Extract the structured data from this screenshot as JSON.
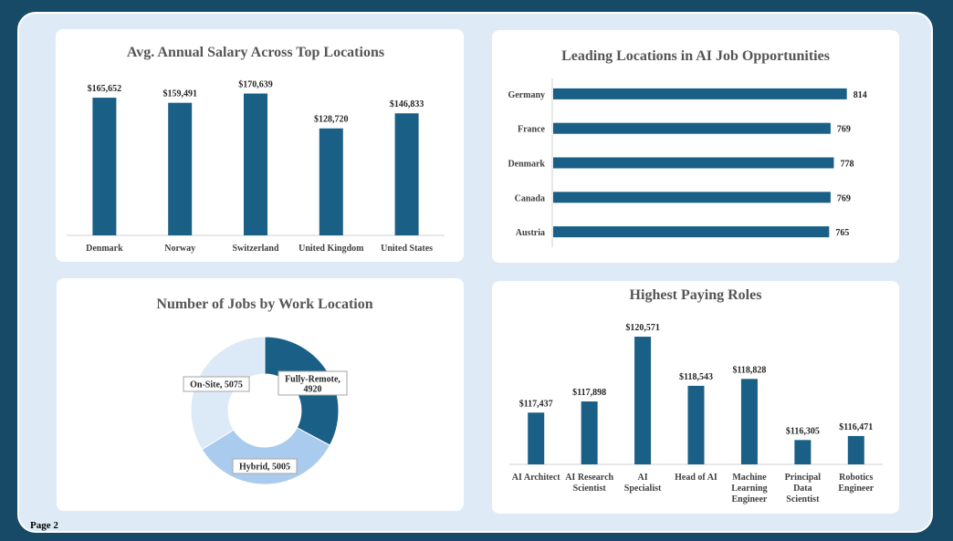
{
  "page_label": "Page 2",
  "colors": {
    "bar": "#1a5f86",
    "donut": [
      "#1a5f86",
      "#a9cbee",
      "#dce9f6"
    ]
  },
  "chart_data": [
    {
      "type": "bar",
      "title": "Avg. Annual Salary Across Top Locations",
      "categories": [
        "Denmark",
        "Norway",
        "Switzerland",
        "United Kingdom",
        "United States"
      ],
      "values": [
        165652,
        159491,
        170639,
        128720,
        146833
      ],
      "data_labels": [
        "$165,652",
        "$159,491",
        "$170,639",
        "$128,720",
        "$146,833"
      ],
      "ylim": [
        0,
        180000
      ],
      "grid": false
    },
    {
      "type": "bar",
      "orientation": "horizontal",
      "title": "Leading Locations in AI Job Opportunities",
      "categories": [
        "Germany",
        "France",
        "Denmark",
        "Canada",
        "Austria"
      ],
      "values": [
        814,
        769,
        778,
        769,
        765
      ],
      "data_labels": [
        "814",
        "769",
        "778",
        "769",
        "765"
      ],
      "xlim": [
        0,
        835
      ],
      "grid": false
    },
    {
      "type": "pie",
      "style": "donut",
      "title": "Number of Jobs by Work Location",
      "categories": [
        "Fully-Remote",
        "Hybrid",
        "On-Site"
      ],
      "values": [
        4920,
        5005,
        5075
      ],
      "data_labels": [
        "Fully-Remote, 4920",
        "Hybrid, 5005",
        "On-Site, 5075"
      ]
    },
    {
      "type": "bar",
      "title": "Highest Paying Roles",
      "categories": [
        "AI Architect",
        "AI Research Scientist",
        "AI Specialist",
        "Head of AI",
        "Machine Learning Engineer",
        "Principal Data Scientist",
        "Robotics Engineer"
      ],
      "category_lines": [
        [
          "AI Architect"
        ],
        [
          "AI Research",
          "Scientist"
        ],
        [
          "AI",
          "Specialist"
        ],
        [
          "Head of AI"
        ],
        [
          "Machine",
          "Learning",
          "Engineer"
        ],
        [
          "Principal",
          "Data",
          "Scientist"
        ],
        [
          "Robotics",
          "Engineer"
        ]
      ],
      "values": [
        117437,
        117898,
        120571,
        118543,
        118828,
        116305,
        116471
      ],
      "data_labels": [
        "$117,437",
        "$117,898",
        "$120,571",
        "$118,543",
        "$118,828",
        "$116,305",
        "$116,471"
      ],
      "ylim": [
        115300,
        120800
      ],
      "grid": false
    }
  ]
}
